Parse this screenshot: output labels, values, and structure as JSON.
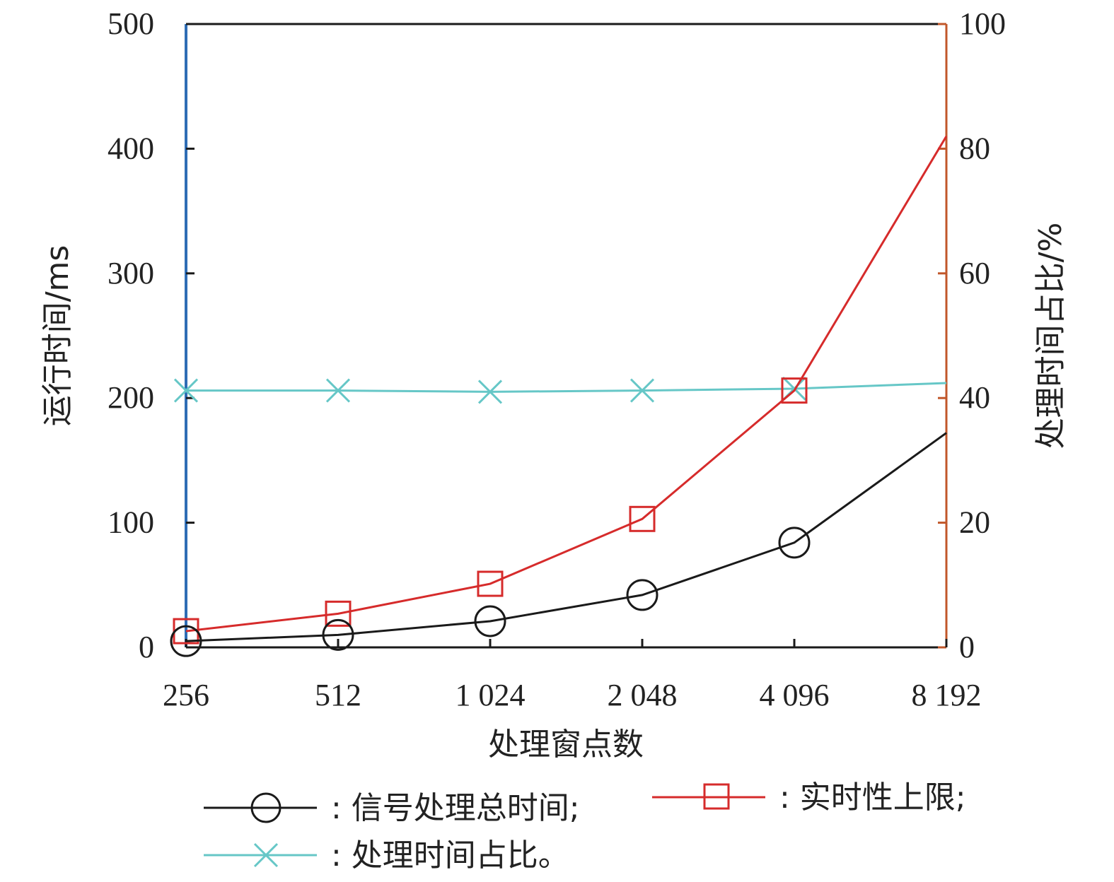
{
  "chart_data": {
    "type": "line",
    "categories": [
      "256",
      "512",
      "1 024",
      "2 048",
      "4 096",
      "8 192"
    ],
    "xlabel": "处理窗点数",
    "ylabel_left": "运行时间/ms",
    "ylabel_right": "处理时间占比/%",
    "ylim_left": [
      0,
      500
    ],
    "ylim_right": [
      0,
      100
    ],
    "yticks_left": [
      "0",
      "100",
      "200",
      "300",
      "400",
      "500"
    ],
    "yticks_right": [
      "0",
      "20",
      "40",
      "60",
      "80",
      "100"
    ],
    "grid": false,
    "legend_position": "bottom",
    "series": [
      {
        "name": ": 信号处理总时间;",
        "axis": "left",
        "marker": "circle",
        "color": "#1a1a1a",
        "values": [
          5,
          10,
          21,
          42,
          84,
          172
        ]
      },
      {
        "name": ": 实时性上限;",
        "axis": "left",
        "marker": "square",
        "color": "#d62b2b",
        "values": [
          13,
          27,
          51,
          103,
          206,
          410
        ]
      },
      {
        "name": ": 处理时间占比。",
        "axis": "right",
        "marker": "x",
        "color": "#66c7c7",
        "values": [
          41.2,
          41.2,
          41.0,
          41.2,
          41.5,
          42.4
        ]
      }
    ],
    "colors": {
      "left_axis": "#2f6db5",
      "right_axis": "#c1572a",
      "frame": "#1a1a1a"
    }
  }
}
